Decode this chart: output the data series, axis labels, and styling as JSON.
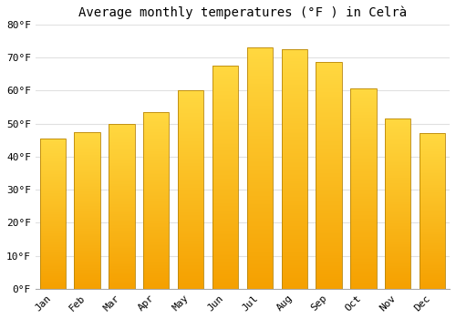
{
  "title": "Average monthly temperatures (°F ) in Celrà",
  "months": [
    "Jan",
    "Feb",
    "Mar",
    "Apr",
    "May",
    "Jun",
    "Jul",
    "Aug",
    "Sep",
    "Oct",
    "Nov",
    "Dec"
  ],
  "values": [
    45.5,
    47.5,
    50.0,
    53.5,
    60.0,
    67.5,
    73.0,
    72.5,
    68.5,
    60.5,
    51.5,
    47.0
  ],
  "bar_color_top": "#FDD835",
  "bar_color_bottom": "#F5A000",
  "bar_edge_color": "#B8860B",
  "background_color": "#FFFFFF",
  "grid_color": "#E0E0E0",
  "ylim": [
    0,
    80
  ],
  "yticks": [
    0,
    10,
    20,
    30,
    40,
    50,
    60,
    70,
    80
  ],
  "title_fontsize": 10,
  "tick_fontsize": 8,
  "bar_width": 0.75
}
